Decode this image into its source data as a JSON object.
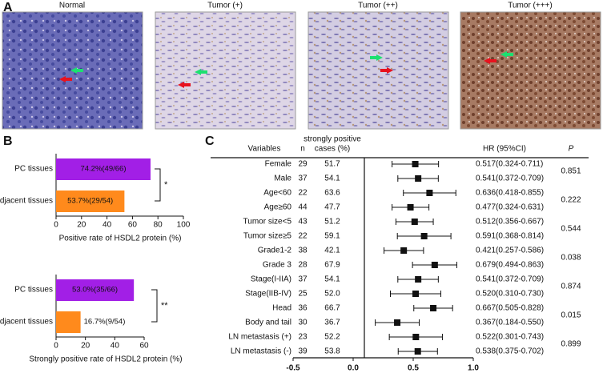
{
  "panel_labels": [
    "A",
    "B",
    "C"
  ],
  "images": [
    {
      "title": "Normal"
    },
    {
      "title": "Tumor (+)"
    },
    {
      "title": "Tumor (++)"
    },
    {
      "title": "Tumor (+++)"
    }
  ],
  "chart_data": [
    {
      "type": "hbar",
      "categories": [
        "PC tissues",
        "Adjacent tissues"
      ],
      "values": [
        74.2,
        53.7
      ],
      "value_labels": [
        "74.2%(49/66)",
        "53.7%(29/54)"
      ],
      "colors": [
        "#a21fe6",
        "#ff8a1c"
      ],
      "x_label": "Positive rate of HSDL2 protein (%)",
      "xlim": [
        0,
        100
      ],
      "xticks": [
        0,
        20,
        40,
        60,
        80,
        100
      ],
      "annotation": "*"
    },
    {
      "type": "hbar",
      "categories": [
        "PC tissues",
        "Adjacent tissues"
      ],
      "values": [
        53.0,
        16.7
      ],
      "value_labels": [
        "53.0%(35/66)",
        "16.7%(9/54)"
      ],
      "colors": [
        "#a21fe6",
        "#ff8a1c"
      ],
      "x_label": "Strongly positive rate of HSDL2 protein (%)",
      "xlim": [
        0,
        60
      ],
      "xticks": [
        0,
        20,
        40,
        60
      ],
      "annotation": "**"
    },
    {
      "type": "forest",
      "headers": {
        "variables": "Variables",
        "n": "n",
        "cases": [
          "strongly positive",
          "cases (%)"
        ],
        "hr": "HR (95%CI)",
        "p": "P"
      },
      "categories": [
        "Female",
        "Male",
        "Age<60",
        "Age≥60",
        "Tumor size<5",
        "Tumor size≥5",
        "Grade1-2",
        "Grade 3",
        "Stage(I-IIA)",
        "Stage(IIB-IV)",
        "Head",
        "Body and tail",
        "LN metastasis (+)",
        "LN metastasis (-)"
      ],
      "n": [
        29,
        37,
        22,
        44,
        43,
        22,
        38,
        28,
        37,
        25,
        36,
        30,
        23,
        39
      ],
      "cases": [
        51.7,
        54.1,
        63.6,
        47.7,
        51.2,
        59.1,
        42.1,
        67.9,
        54.1,
        {
          "value": 52,
          "label": "52.0"
        },
        66.7,
        36.7,
        52.2,
        53.8
      ],
      "values": [
        0.517,
        0.541,
        0.636,
        0.477,
        0.512,
        0.591,
        0.421,
        0.679,
        0.541,
        0.52,
        0.667,
        0.367,
        0.522,
        0.538
      ],
      "lower": [
        0.324,
        0.372,
        0.418,
        0.324,
        0.356,
        0.368,
        0.257,
        0.494,
        0.372,
        0.31,
        0.505,
        0.184,
        0.301,
        0.375
      ],
      "upper": [
        0.711,
        0.709,
        0.855,
        0.631,
        0.667,
        0.814,
        0.586,
        0.863,
        0.709,
        0.73,
        0.828,
        0.55,
        0.743,
        0.702
      ],
      "value_labels": [
        "0.517(0.324-0.711)",
        "0.541(0.372-0.709)",
        "0.636(0.418-0.855)",
        "0.477(0.324-0.631)",
        "0.512(0.356-0.667)",
        "0.591(0.368-0.814)",
        "0.421(0.257-0.586)",
        "0.679(0.494-0.863)",
        "0.541(0.372-0.709)",
        "0.520(0.310-0.730)",
        "0.667(0.505-0.828)",
        "0.367(0.184-0.550)",
        "0.522(0.301-0.743)",
        "0.538(0.375-0.702)"
      ],
      "p_values": [
        0.851,
        0.222,
        0.544,
        0.038,
        0.874,
        0.015,
        0.899
      ],
      "xlim": [
        -0.5,
        1
      ],
      "xticks": [
        -0.5,
        {
          "value": 0,
          "label": "0.0"
        },
        0.5,
        {
          "value": 1,
          "label": "1.0"
        }
      ]
    }
  ]
}
